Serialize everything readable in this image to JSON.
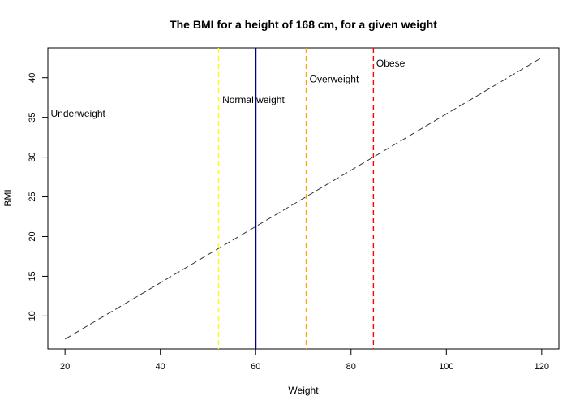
{
  "chart_data": {
    "type": "line",
    "title": "The BMI for a height of 168 cm, for a given weight",
    "xlabel": "Weight",
    "ylabel": "BMI",
    "xlim": [
      16.4,
      123.6
    ],
    "ylim": [
      5.85,
      43.75
    ],
    "x_ticks": [
      20,
      40,
      60,
      80,
      100,
      120
    ],
    "y_ticks": [
      10,
      15,
      20,
      25,
      30,
      35,
      40
    ],
    "grid": false,
    "series": [
      {
        "line_style": "dashed",
        "color": "#333333",
        "x": [
          20,
          120
        ],
        "y": [
          7.09,
          42.52
        ]
      }
    ],
    "vertical_lines": [
      {
        "x": 52.2,
        "color": "#ffff00",
        "style": "dashed"
      },
      {
        "x": 60,
        "color": "#000080",
        "style": "solid"
      },
      {
        "x": 70.6,
        "color": "#ffa500",
        "style": "dashed"
      },
      {
        "x": 84.7,
        "color": "#ff0000",
        "style": "dashed"
      }
    ],
    "annotations": [
      {
        "text": "Underweight",
        "x": 17,
        "y": 35.5
      },
      {
        "text": "Normal weight",
        "x": 53,
        "y": 37.2
      },
      {
        "text": "Overweight",
        "x": 71.3,
        "y": 39.8
      },
      {
        "text": "Obese",
        "x": 85.3,
        "y": 41.8
      }
    ]
  }
}
